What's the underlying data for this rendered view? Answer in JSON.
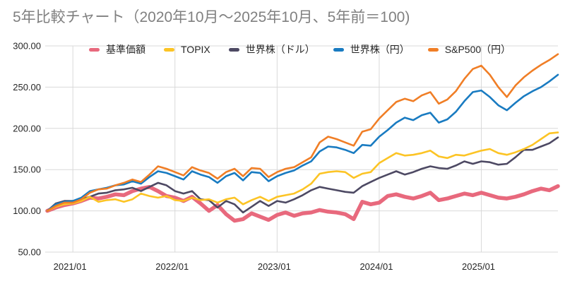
{
  "page": {
    "title": "5年比較チャート（2020年10月～2025年10月、5年前＝100)"
  },
  "chart_data": {
    "type": "line",
    "title": "5年比較チャート（2020年10月～2025年10月、5年前＝100)",
    "legend_position": "top",
    "grid": true,
    "grid_color": "#d9d9d9",
    "tick_color": "#262626",
    "ylim": [
      50,
      300
    ],
    "y_ticks": [
      50,
      100,
      150,
      200,
      250,
      300
    ],
    "y_tick_labels": [
      "50.00",
      "100.00",
      "150.00",
      "200.00",
      "250.00",
      "300.00"
    ],
    "x_ticks": [
      "2021/01",
      "2022/01",
      "2023/01",
      "2024/01",
      "2025/01"
    ],
    "x": [
      "2020/10",
      "2020/11",
      "2020/12",
      "2021/01",
      "2021/02",
      "2021/03",
      "2021/04",
      "2021/05",
      "2021/06",
      "2021/07",
      "2021/08",
      "2021/09",
      "2021/10",
      "2021/11",
      "2021/12",
      "2022/01",
      "2022/02",
      "2022/03",
      "2022/04",
      "2022/05",
      "2022/06",
      "2022/07",
      "2022/08",
      "2022/09",
      "2022/10",
      "2022/11",
      "2022/12",
      "2023/01",
      "2023/02",
      "2023/03",
      "2023/04",
      "2023/05",
      "2023/06",
      "2023/07",
      "2023/08",
      "2023/09",
      "2023/10",
      "2023/11",
      "2023/12",
      "2024/01",
      "2024/02",
      "2024/03",
      "2024/04",
      "2024/05",
      "2024/06",
      "2024/07",
      "2024/08",
      "2024/09",
      "2024/10",
      "2024/11",
      "2024/12",
      "2025/01",
      "2025/02",
      "2025/03",
      "2025/04",
      "2025/05",
      "2025/06",
      "2025/07",
      "2025/08",
      "2025/09",
      "2025/10"
    ],
    "draw_order": [
      0,
      2,
      1,
      3,
      4
    ],
    "series": [
      {
        "name": "基準価額",
        "color": "#e8697d",
        "width": 5.5,
        "values": [
          100,
          104,
          107,
          109,
          112,
          116,
          115,
          117,
          120,
          119,
          124,
          127,
          129,
          124,
          118,
          116,
          112,
          117,
          109,
          100,
          107,
          96,
          88,
          90,
          97,
          93,
          89,
          95,
          98,
          94,
          97,
          98,
          101,
          99,
          98,
          96,
          90,
          111,
          108,
          110,
          118,
          120,
          117,
          115,
          118,
          122,
          113,
          115,
          118,
          121,
          119,
          122,
          119,
          116,
          115,
          117,
          120,
          124,
          127,
          125,
          130
        ]
      },
      {
        "name": "TOPIX",
        "color": "#fcc425",
        "width": 2.6,
        "values": [
          100,
          105,
          108,
          109,
          112,
          117,
          111,
          113,
          114,
          111,
          114,
          121,
          118,
          116,
          118,
          113,
          112,
          116,
          113,
          114,
          110,
          114,
          116,
          108,
          113,
          117,
          112,
          117,
          119,
          121,
          126,
          133,
          145,
          147,
          148,
          147,
          140,
          145,
          147,
          158,
          164,
          170,
          167,
          168,
          170,
          173,
          166,
          164,
          168,
          167,
          170,
          173,
          175,
          170,
          168,
          171,
          175,
          180,
          187,
          194,
          195
        ]
      },
      {
        "name": "世界株（ドル）",
        "color": "#4d4963",
        "width": 2.6,
        "values": [
          100,
          109,
          112,
          112,
          114,
          117,
          121,
          122,
          125,
          126,
          128,
          124,
          129,
          134,
          131,
          124,
          121,
          124,
          114,
          113,
          104,
          112,
          108,
          98,
          105,
          112,
          106,
          112,
          110,
          114,
          119,
          125,
          129,
          127,
          125,
          123,
          122,
          130,
          135,
          140,
          144,
          148,
          144,
          147,
          151,
          154,
          152,
          151,
          155,
          160,
          157,
          160,
          159,
          156,
          157,
          165,
          174,
          174,
          178,
          182,
          189
        ]
      },
      {
        "name": "世界株（円）",
        "color": "#197bc1",
        "width": 2.6,
        "values": [
          100,
          108,
          111,
          112,
          116,
          124,
          126,
          128,
          131,
          132,
          136,
          133,
          141,
          148,
          146,
          142,
          138,
          148,
          144,
          141,
          134,
          142,
          146,
          137,
          147,
          146,
          136,
          142,
          146,
          149,
          155,
          160,
          172,
          178,
          177,
          174,
          170,
          180,
          179,
          190,
          198,
          207,
          213,
          210,
          216,
          219,
          207,
          211,
          220,
          233,
          244,
          246,
          238,
          228,
          222,
          231,
          239,
          245,
          250,
          257,
          265
        ]
      },
      {
        "name": "S&P500（円）",
        "color": "#f07e26",
        "width": 2.6,
        "values": [
          100,
          106,
          110,
          110,
          114,
          122,
          126,
          127,
          131,
          134,
          138,
          135,
          144,
          154,
          151,
          147,
          143,
          153,
          149,
          146,
          139,
          147,
          151,
          142,
          152,
          151,
          141,
          147,
          151,
          153,
          159,
          165,
          183,
          190,
          187,
          183,
          179,
          196,
          199,
          212,
          222,
          232,
          236,
          233,
          240,
          244,
          230,
          235,
          245,
          260,
          272,
          276,
          265,
          250,
          238,
          252,
          262,
          270,
          277,
          283,
          290
        ]
      }
    ]
  }
}
